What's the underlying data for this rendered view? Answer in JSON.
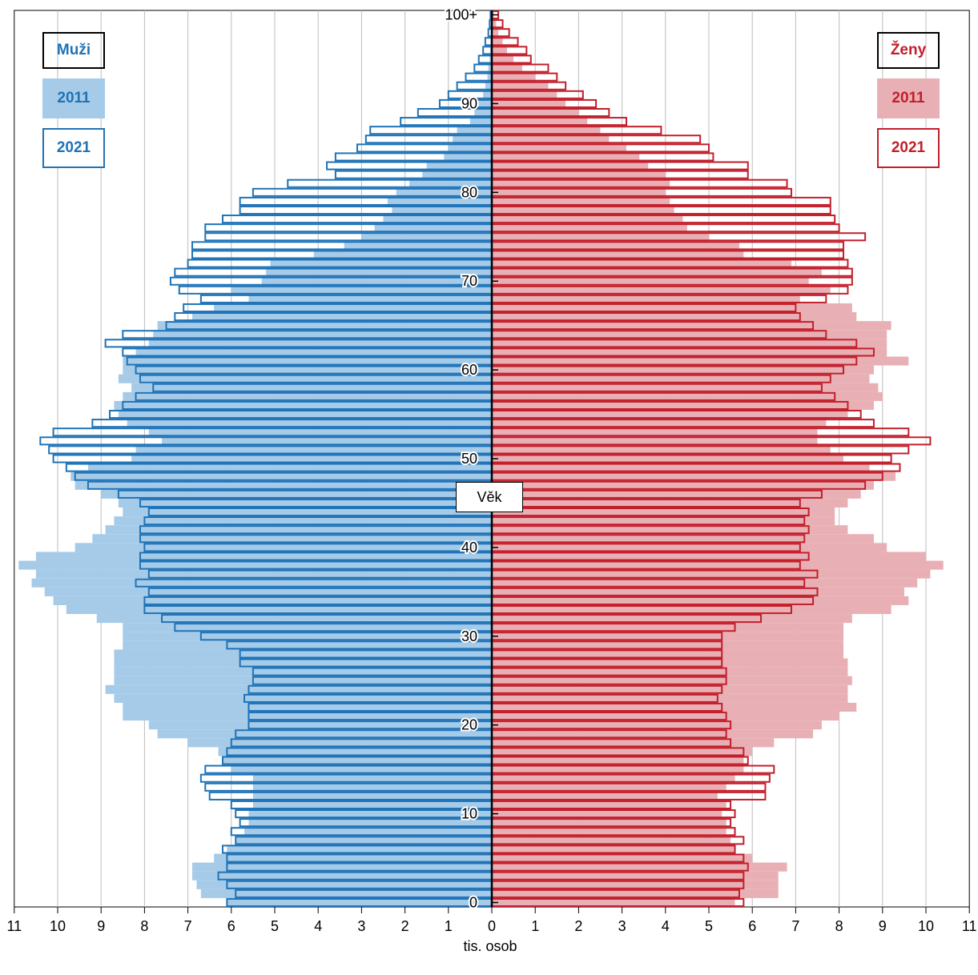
{
  "chart_data": {
    "type": "bar",
    "orientation": "horizontal-pyramid",
    "title": "",
    "xlabel": "tis. osob",
    "ylabel": "Věk",
    "xlim": [
      -11,
      11
    ],
    "ylim": [
      0,
      100
    ],
    "x_ticks": [
      "11",
      "10",
      "9",
      "8",
      "7",
      "6",
      "5",
      "4",
      "3",
      "2",
      "1",
      "0",
      "1",
      "2",
      "3",
      "4",
      "5",
      "6",
      "7",
      "8",
      "9",
      "10",
      "11"
    ],
    "y_ticks": [
      "0",
      "10",
      "20",
      "30",
      "40",
      "50",
      "60",
      "70",
      "80",
      "90",
      "100+"
    ],
    "grid": "vertical",
    "legend": {
      "left": {
        "title": "Muži",
        "items": [
          "2011",
          "2021"
        ]
      },
      "right": {
        "title": "Ženy",
        "items": [
          "2011",
          "2021"
        ]
      }
    },
    "colors": {
      "male_fill": "#a6cbe8",
      "male_line": "#1f73b7",
      "female_fill": "#e8b0b5",
      "female_line": "#c21f2b",
      "axis": "#000000",
      "grid": "#bdbdbd"
    },
    "ages": [
      0,
      1,
      2,
      3,
      4,
      5,
      6,
      7,
      8,
      9,
      10,
      11,
      12,
      13,
      14,
      15,
      16,
      17,
      18,
      19,
      20,
      21,
      22,
      23,
      24,
      25,
      26,
      27,
      28,
      29,
      30,
      31,
      32,
      33,
      34,
      35,
      36,
      37,
      38,
      39,
      40,
      41,
      42,
      43,
      44,
      45,
      46,
      47,
      48,
      49,
      50,
      51,
      52,
      53,
      54,
      55,
      56,
      57,
      58,
      59,
      60,
      61,
      62,
      63,
      64,
      65,
      66,
      67,
      68,
      69,
      70,
      71,
      72,
      73,
      74,
      75,
      76,
      77,
      78,
      79,
      80,
      81,
      82,
      83,
      84,
      85,
      86,
      87,
      88,
      89,
      90,
      91,
      92,
      93,
      94,
      95,
      96,
      97,
      98,
      99,
      100
    ],
    "series": [
      {
        "name": "Muži 2011",
        "sex": "male",
        "year": "2011",
        "values": [
          6.1,
          6.7,
          6.8,
          6.9,
          6.9,
          6.4,
          6.1,
          5.9,
          5.7,
          5.6,
          5.6,
          5.5,
          5.5,
          5.5,
          5.5,
          6.0,
          6.2,
          6.3,
          7.0,
          7.7,
          7.9,
          8.5,
          8.5,
          8.7,
          8.9,
          8.7,
          8.7,
          8.7,
          8.7,
          8.5,
          8.5,
          8.5,
          9.1,
          9.8,
          10.1,
          10.3,
          10.6,
          10.5,
          10.9,
          10.5,
          9.6,
          9.2,
          8.9,
          8.7,
          8.5,
          8.6,
          9.0,
          9.6,
          9.7,
          9.3,
          8.3,
          8.2,
          7.6,
          7.9,
          8.4,
          8.6,
          8.7,
          8.5,
          8.3,
          8.6,
          8.5,
          8.5,
          8.2,
          7.9,
          7.8,
          7.7,
          6.9,
          6.4,
          5.6,
          6.0,
          5.3,
          5.2,
          5.1,
          4.1,
          3.4,
          3.0,
          2.7,
          2.5,
          2.3,
          2.4,
          2.2,
          1.9,
          1.6,
          1.5,
          1.1,
          1.0,
          0.9,
          0.8,
          0.5,
          0.4,
          0.3,
          0.2,
          0.15,
          0.1,
          0.08,
          0.05,
          0.04,
          0.03,
          0.02,
          0.01,
          0.01
        ]
      },
      {
        "name": "Muži 2021",
        "sex": "male",
        "year": "2021",
        "values": [
          6.1,
          5.9,
          6.1,
          6.3,
          6.1,
          6.1,
          6.2,
          5.9,
          6.0,
          5.8,
          5.9,
          6.0,
          6.5,
          6.6,
          6.7,
          6.6,
          6.2,
          6.1,
          6.0,
          5.9,
          5.6,
          5.6,
          5.6,
          5.7,
          5.6,
          5.5,
          5.5,
          5.8,
          5.8,
          6.1,
          6.7,
          7.3,
          7.6,
          8.0,
          8.0,
          7.9,
          8.2,
          7.9,
          8.1,
          8.1,
          8.0,
          8.1,
          8.1,
          8.0,
          7.9,
          8.1,
          8.6,
          9.3,
          9.6,
          9.8,
          10.1,
          10.2,
          10.4,
          10.1,
          9.2,
          8.8,
          8.5,
          8.2,
          7.8,
          8.1,
          8.2,
          8.4,
          8.5,
          8.9,
          8.5,
          7.5,
          7.3,
          7.1,
          6.7,
          7.2,
          7.4,
          7.3,
          7.0,
          6.9,
          6.9,
          6.6,
          6.6,
          6.2,
          5.8,
          5.8,
          5.5,
          4.7,
          3.6,
          3.8,
          3.6,
          3.1,
          2.9,
          2.8,
          2.1,
          1.7,
          1.2,
          1.0,
          0.8,
          0.6,
          0.4,
          0.3,
          0.2,
          0.15,
          0.08,
          0.05,
          0.03
        ]
      },
      {
        "name": "Ženy 2011",
        "sex": "female",
        "year": "2011",
        "values": [
          5.6,
          6.6,
          6.6,
          6.6,
          6.8,
          6.0,
          5.6,
          5.5,
          5.4,
          5.4,
          5.3,
          5.4,
          5.2,
          5.4,
          5.6,
          5.8,
          5.8,
          6.0,
          6.5,
          7.4,
          7.6,
          8.0,
          8.4,
          8.2,
          8.2,
          8.3,
          8.2,
          8.2,
          8.1,
          8.1,
          8.1,
          8.1,
          8.3,
          9.2,
          9.6,
          9.5,
          9.8,
          10.1,
          10.4,
          10.0,
          9.1,
          8.8,
          8.2,
          7.9,
          7.9,
          8.2,
          8.5,
          8.8,
          9.3,
          8.7,
          8.1,
          7.8,
          7.5,
          7.5,
          7.7,
          8.2,
          8.8,
          9.0,
          8.9,
          8.7,
          8.8,
          9.6,
          9.1,
          9.1,
          9.1,
          9.2,
          8.4,
          8.3,
          7.1,
          7.8,
          7.3,
          7.6,
          6.9,
          5.8,
          5.7,
          5.0,
          4.5,
          4.4,
          4.2,
          4.1,
          4.0,
          4.1,
          4.0,
          3.6,
          3.4,
          3.1,
          2.7,
          2.5,
          2.2,
          2.0,
          1.7,
          1.5,
          1.3,
          1.0,
          0.7,
          0.5,
          0.35,
          0.25,
          0.15,
          0.1,
          0.05
        ]
      },
      {
        "name": "Ženy 2021",
        "sex": "female",
        "year": "2021",
        "values": [
          5.8,
          5.7,
          5.8,
          5.8,
          5.9,
          5.8,
          5.6,
          5.8,
          5.6,
          5.5,
          5.6,
          5.5,
          6.3,
          6.3,
          6.4,
          6.5,
          5.9,
          5.8,
          5.5,
          5.4,
          5.5,
          5.4,
          5.3,
          5.2,
          5.3,
          5.4,
          5.4,
          5.3,
          5.3,
          5.3,
          5.3,
          5.6,
          6.2,
          6.9,
          7.4,
          7.5,
          7.2,
          7.5,
          7.1,
          7.3,
          7.1,
          7.2,
          7.3,
          7.2,
          7.3,
          7.1,
          7.6,
          8.6,
          9.0,
          9.4,
          9.2,
          9.6,
          10.1,
          9.6,
          8.8,
          8.5,
          8.2,
          7.9,
          7.6,
          7.8,
          8.1,
          8.4,
          8.8,
          8.4,
          7.7,
          7.4,
          7.1,
          7.0,
          7.7,
          8.2,
          8.3,
          8.3,
          8.2,
          8.1,
          8.1,
          8.6,
          8.0,
          7.9,
          7.8,
          7.8,
          6.9,
          6.8,
          5.9,
          5.9,
          5.1,
          5.0,
          4.8,
          3.9,
          3.1,
          2.7,
          2.4,
          2.1,
          1.7,
          1.5,
          1.3,
          0.9,
          0.8,
          0.6,
          0.4,
          0.25,
          0.15
        ]
      }
    ]
  }
}
